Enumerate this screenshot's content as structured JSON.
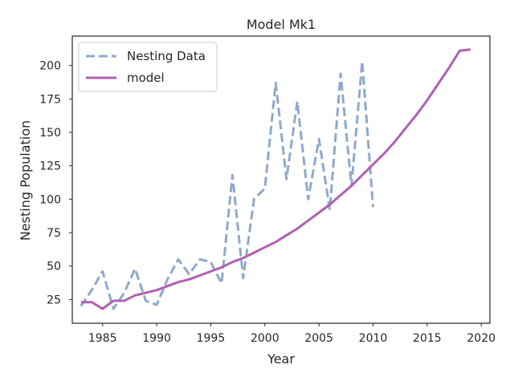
{
  "chart_data": {
    "type": "line",
    "title": "Model Mk1",
    "xlabel": "Year",
    "ylabel": "Nesting Population",
    "xlim": [
      1982.2,
      2020.8
    ],
    "ylim": [
      7.2,
      222.0
    ],
    "xticks": [
      1985,
      1990,
      1995,
      2000,
      2005,
      2010,
      2015,
      2020
    ],
    "yticks": [
      25,
      50,
      75,
      100,
      125,
      150,
      175,
      200
    ],
    "grid": false,
    "legend": "top-left",
    "series": [
      {
        "name": "Nesting Data",
        "style": "dashed",
        "color": "#8fa9cc",
        "x": [
          1983,
          1984,
          1985,
          1986,
          1987,
          1988,
          1989,
          1990,
          1991,
          1992,
          1993,
          1994,
          1995,
          1996,
          1997,
          1998,
          1999,
          2000,
          2001,
          2002,
          2003,
          2004,
          2005,
          2006,
          2007,
          2008,
          2009,
          2010
        ],
        "values": [
          20,
          32,
          46,
          18,
          30,
          48,
          24,
          21,
          40,
          55,
          44,
          55,
          53,
          37,
          118,
          41,
          100,
          108,
          187,
          115,
          173,
          100,
          145,
          92,
          194,
          110,
          203,
          94
        ]
      },
      {
        "name": "model",
        "style": "solid",
        "color": "#b160b3",
        "x": [
          1983,
          1984,
          1985,
          1986,
          1987,
          1988,
          1989,
          1990,
          1991,
          1992,
          1993,
          1994,
          1995,
          1996,
          1997,
          1998,
          1999,
          2000,
          2001,
          2002,
          2003,
          2004,
          2005,
          2006,
          2007,
          2008,
          2009,
          2010,
          2011,
          2012,
          2013,
          2014,
          2015,
          2016,
          2017,
          2018,
          2019
        ],
        "values": [
          23,
          23,
          18,
          24,
          24,
          28,
          30,
          32,
          35,
          38,
          40,
          43,
          46,
          49,
          53,
          56,
          60,
          64,
          68,
          73,
          78,
          84,
          90,
          96,
          103,
          110,
          118,
          126,
          134,
          143,
          153,
          163,
          174,
          186,
          198,
          211,
          212
        ]
      }
    ]
  }
}
